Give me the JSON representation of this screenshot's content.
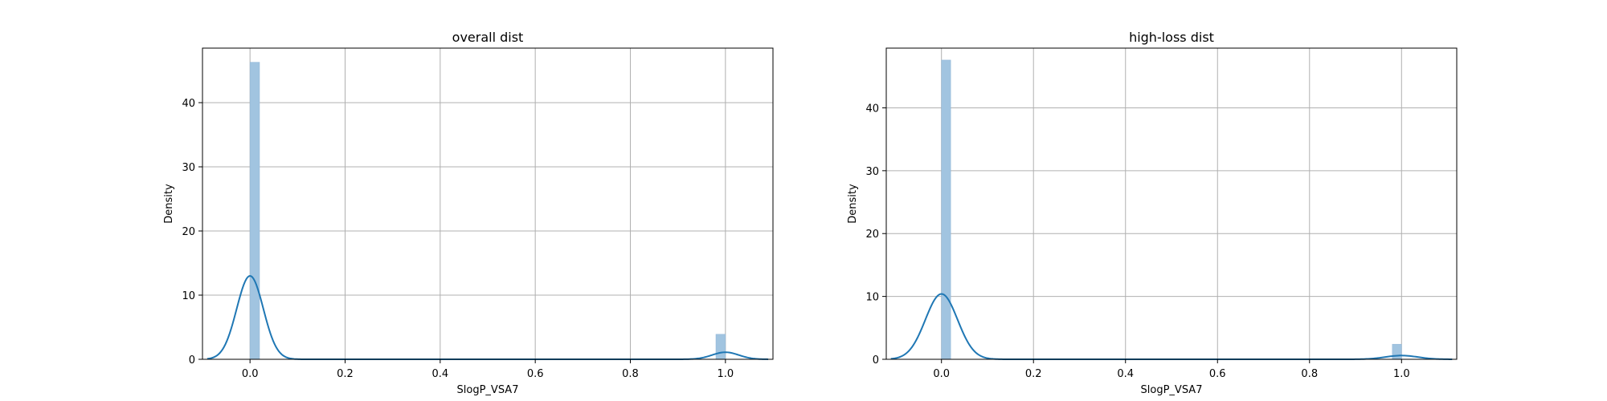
{
  "chart_data": [
    {
      "type": "histogram",
      "title": "overall dist",
      "xlabel": "SlogP_VSA7",
      "ylabel": "Density",
      "xlim": [
        -0.1,
        1.1
      ],
      "ylim": [
        0,
        48.5
      ],
      "xticks": [
        0.0,
        0.2,
        0.4,
        0.6,
        0.8,
        1.0
      ],
      "xtick_labels": [
        "0.0",
        "0.2",
        "0.4",
        "0.6",
        "0.8",
        "1.0"
      ],
      "yticks": [
        0,
        10,
        20,
        30,
        40
      ],
      "ytick_labels": [
        "0",
        "10",
        "20",
        "30",
        "40"
      ],
      "grid": true,
      "bars": [
        {
          "x0": 0.0,
          "x1": 0.02,
          "density": 46.3
        },
        {
          "x0": 0.98,
          "x1": 1.0,
          "density": 3.9
        }
      ],
      "kde": {
        "peaks": [
          {
            "mu": 0.0,
            "sigma": 0.028,
            "height": 13.0
          },
          {
            "mu": 1.0,
            "sigma": 0.028,
            "height": 1.1
          }
        ],
        "x_range": [
          -0.09,
          1.09
        ]
      }
    },
    {
      "type": "histogram",
      "title": "high-loss dist",
      "xlabel": "SlogP_VSA7",
      "ylabel": "Density",
      "xlim": [
        -0.12,
        1.12
      ],
      "ylim": [
        0,
        49.5
      ],
      "xticks": [
        0.0,
        0.2,
        0.4,
        0.6,
        0.8,
        1.0
      ],
      "xtick_labels": [
        "0.0",
        "0.2",
        "0.4",
        "0.6",
        "0.8",
        "1.0"
      ],
      "yticks": [
        0,
        10,
        20,
        30,
        40
      ],
      "ytick_labels": [
        "0",
        "10",
        "20",
        "30",
        "40"
      ],
      "grid": true,
      "bars": [
        {
          "x0": 0.0,
          "x1": 0.02,
          "density": 47.6
        },
        {
          "x0": 0.98,
          "x1": 1.0,
          "density": 2.4
        }
      ],
      "kde": {
        "peaks": [
          {
            "mu": 0.0,
            "sigma": 0.035,
            "height": 10.4
          },
          {
            "mu": 1.0,
            "sigma": 0.035,
            "height": 0.6
          }
        ],
        "x_range": [
          -0.11,
          1.11
        ]
      }
    }
  ]
}
